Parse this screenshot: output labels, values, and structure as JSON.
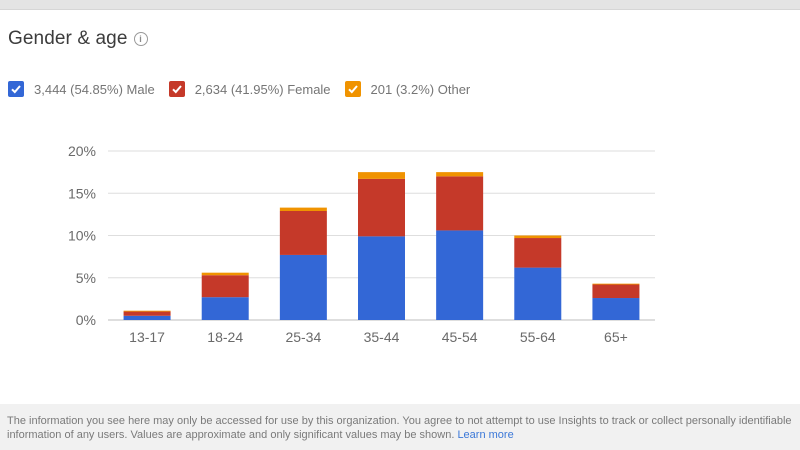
{
  "header": {
    "title": "Gender & age",
    "info_icon": "info-icon"
  },
  "legend": [
    {
      "label": "3,444 (54.85%) Male",
      "color": "#3367d6",
      "checked": true
    },
    {
      "label": "2,634 (41.95%) Female",
      "color": "#c53929",
      "checked": true
    },
    {
      "label": "201 (3.2%) Other",
      "color": "#f09300",
      "checked": true
    }
  ],
  "chart_data": {
    "type": "bar",
    "stacked": true,
    "title": "Gender & age",
    "xlabel": "",
    "ylabel": "",
    "categories": [
      "13-17",
      "18-24",
      "25-34",
      "35-44",
      "45-54",
      "55-64",
      "65+"
    ],
    "series": [
      {
        "name": "Male",
        "color": "#3367d6",
        "values": [
          0.5,
          2.7,
          7.7,
          9.9,
          10.6,
          6.2,
          2.6
        ]
      },
      {
        "name": "Female",
        "color": "#c53929",
        "values": [
          0.5,
          2.6,
          5.2,
          6.8,
          6.4,
          3.5,
          1.6
        ]
      },
      {
        "name": "Other",
        "color": "#f09300",
        "values": [
          0.1,
          0.3,
          0.4,
          0.8,
          0.5,
          0.3,
          0.1
        ]
      }
    ],
    "ylim": [
      0,
      20
    ],
    "yticks": [
      0,
      5,
      10,
      15,
      20
    ],
    "ytick_labels": [
      "0%",
      "5%",
      "10%",
      "15%",
      "20%"
    ],
    "grid": true
  },
  "footer": {
    "text": "The information you see here may only be accessed for use by this organization. You agree to not attempt to use Insights to track or collect personally identifiable information of any users. Values are approximate and only significant values may be shown. ",
    "link": "Learn more"
  }
}
